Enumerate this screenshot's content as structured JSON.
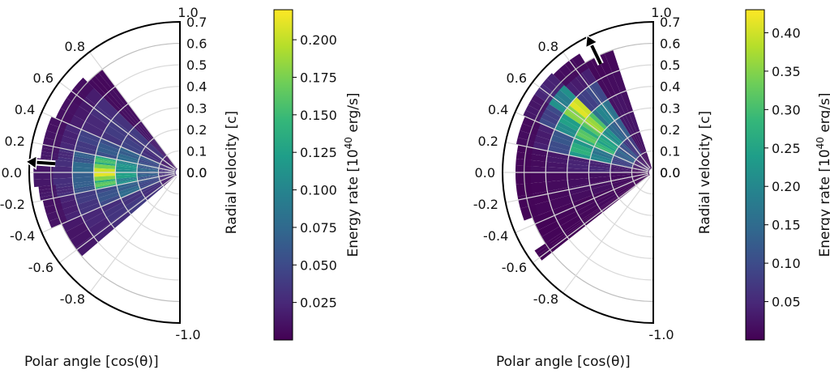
{
  "colormap": [
    "#440154",
    "#482878",
    "#3e4989",
    "#31688e",
    "#26828e",
    "#1f9e89",
    "#35b779",
    "#6ece58",
    "#b5de2b",
    "#fde725"
  ],
  "chart_data": [
    {
      "type": "heatmap",
      "projection": "half-polar",
      "xlabel": "Polar angle [cos(θ)]",
      "ylabel": "Radial velocity [c]",
      "angle_ticks": [
        "1.0",
        "0.8",
        "0.6",
        "0.4",
        "0.2",
        "0.0",
        "-0.2",
        "-0.4",
        "-0.6",
        "-0.8",
        "-1.0"
      ],
      "angle_tick_values": [
        1.0,
        0.8,
        0.6,
        0.4,
        0.2,
        0.0,
        -0.2,
        -0.4,
        -0.6,
        -0.8,
        -1.0
      ],
      "radial_ticks": [
        "0.7",
        "0.6",
        "0.5",
        "0.4",
        "0.3",
        "0.2",
        "0.1",
        "0.0",
        "0.0"
      ],
      "radial_tick_values": [
        0.7,
        0.6,
        0.5,
        0.4,
        0.3,
        0.2,
        0.1,
        0.0,
        0.0
      ],
      "rlim": [
        0,
        0.7
      ],
      "grid": true,
      "colorbar": {
        "label": "Energy rate [10",
        "label_sup": "40",
        "label_tail": " erg/s]",
        "range": [
          0.0,
          0.22
        ],
        "tick_labels": [
          "0.200",
          "0.175",
          "0.150",
          "0.125",
          "0.100",
          "0.075",
          "0.050",
          "0.025"
        ],
        "tick_values": [
          0.2,
          0.175,
          0.15,
          0.125,
          0.1,
          0.075,
          0.05,
          0.025
        ]
      },
      "arrow": {
        "cos_theta": 0.07,
        "r_start": 0.58,
        "r_end": 0.71
      },
      "rows": [
        {
          "mu": [
            0.7,
            0.8
          ],
          "vmax": 0.6,
          "r": [
            0.05,
            0.15,
            0.25,
            0.35,
            0.45,
            0.55
          ],
          "v": [
            0.012,
            0.02,
            0.015,
            0.01,
            0.008,
            0.006
          ]
        },
        {
          "mu": [
            0.4,
            0.7
          ],
          "vmax": 0.63,
          "r": [
            0.05,
            0.15,
            0.25,
            0.35,
            0.45,
            0.55,
            0.61
          ],
          "v": [
            0.02,
            0.035,
            0.045,
            0.04,
            0.03,
            0.018,
            0.01
          ]
        },
        {
          "mu": [
            0.2,
            0.4
          ],
          "vmax": 0.65,
          "r": [
            0.05,
            0.15,
            0.25,
            0.35,
            0.45,
            0.55,
            0.62
          ],
          "v": [
            0.03,
            0.06,
            0.08,
            0.065,
            0.045,
            0.025,
            0.012
          ]
        },
        {
          "mu": [
            0.1,
            0.2
          ],
          "vmax": 0.65,
          "r": [
            0.05,
            0.15,
            0.25,
            0.35,
            0.45,
            0.55,
            0.62
          ],
          "v": [
            0.035,
            0.07,
            0.12,
            0.16,
            0.07,
            0.03,
            0.015
          ]
        },
        {
          "mu": [
            -0.1,
            0.1
          ],
          "vmax": 0.68,
          "r": [
            0.05,
            0.15,
            0.25,
            0.35,
            0.45,
            0.55,
            0.64
          ],
          "v": [
            0.035,
            0.075,
            0.13,
            0.215,
            0.08,
            0.03,
            0.015
          ]
        },
        {
          "mu": [
            -0.2,
            -0.1
          ],
          "vmax": 0.66,
          "r": [
            0.05,
            0.15,
            0.25,
            0.35,
            0.45,
            0.55,
            0.63
          ],
          "v": [
            0.03,
            0.065,
            0.115,
            0.17,
            0.07,
            0.03,
            0.015
          ]
        },
        {
          "mu": [
            -0.4,
            -0.2
          ],
          "vmax": 0.65,
          "r": [
            0.05,
            0.15,
            0.25,
            0.35,
            0.45,
            0.55,
            0.62
          ],
          "v": [
            0.028,
            0.055,
            0.08,
            0.06,
            0.04,
            0.022,
            0.012
          ]
        },
        {
          "mu": [
            -0.65,
            -0.4
          ],
          "vmax": 0.6,
          "r": [
            0.05,
            0.15,
            0.25,
            0.35,
            0.45,
            0.55
          ],
          "v": [
            0.02,
            0.035,
            0.04,
            0.035,
            0.025,
            0.015
          ]
        }
      ]
    },
    {
      "type": "heatmap",
      "projection": "half-polar",
      "xlabel": "Polar angle [cos(θ)]",
      "ylabel": "Radial velocity [c]",
      "angle_ticks": [
        "1.0",
        "0.8",
        "0.6",
        "0.4",
        "0.2",
        "0.0",
        "-0.2",
        "-0.4",
        "-0.6",
        "-0.8",
        "-1.0"
      ],
      "angle_tick_values": [
        1.0,
        0.8,
        0.6,
        0.4,
        0.2,
        0.0,
        -0.2,
        -0.4,
        -0.6,
        -0.8,
        -1.0
      ],
      "radial_ticks": [
        "0.7",
        "0.6",
        "0.5",
        "0.4",
        "0.3",
        "0.2",
        "0.1",
        "0.0",
        "0.0"
      ],
      "radial_tick_values": [
        0.7,
        0.6,
        0.5,
        0.4,
        0.3,
        0.2,
        0.1,
        0.0,
        0.0
      ],
      "rlim": [
        0,
        0.7
      ],
      "grid": true,
      "colorbar": {
        "label": "Energy rate [10",
        "label_sup": "40",
        "label_tail": " erg/s]",
        "range": [
          0.0,
          0.43
        ],
        "tick_labels": [
          "0.40",
          "0.35",
          "0.30",
          "0.25",
          "0.20",
          "0.15",
          "0.10",
          "0.05"
        ],
        "tick_values": [
          0.4,
          0.35,
          0.3,
          0.25,
          0.2,
          0.15,
          0.1,
          0.05
        ]
      },
      "arrow": {
        "cos_theta": 0.9,
        "r_start": 0.56,
        "r_end": 0.7
      },
      "rows": [
        {
          "mu": [
            0.85,
            0.95
          ],
          "vmax": 0.6,
          "r": [
            0.05,
            0.15,
            0.25,
            0.35,
            0.45,
            0.55
          ],
          "v": [
            0.015,
            0.025,
            0.03,
            0.025,
            0.015,
            0.01
          ]
        },
        {
          "mu": [
            0.7,
            0.85
          ],
          "vmax": 0.65,
          "r": [
            0.05,
            0.15,
            0.25,
            0.35,
            0.45,
            0.55,
            0.62
          ],
          "v": [
            0.03,
            0.08,
            0.15,
            0.2,
            0.1,
            0.04,
            0.015
          ]
        },
        {
          "mu": [
            0.55,
            0.7
          ],
          "vmax": 0.66,
          "r": [
            0.05,
            0.15,
            0.25,
            0.35,
            0.45,
            0.55,
            0.63
          ],
          "v": [
            0.04,
            0.12,
            0.25,
            0.38,
            0.42,
            0.22,
            0.05
          ]
        },
        {
          "mu": [
            0.4,
            0.55
          ],
          "vmax": 0.66,
          "r": [
            0.05,
            0.15,
            0.25,
            0.35,
            0.45,
            0.55,
            0.63
          ],
          "v": [
            0.04,
            0.15,
            0.3,
            0.33,
            0.25,
            0.1,
            0.03
          ]
        },
        {
          "mu": [
            0.2,
            0.4
          ],
          "vmax": 0.65,
          "r": [
            0.05,
            0.15,
            0.25,
            0.35,
            0.45,
            0.55,
            0.62
          ],
          "v": [
            0.03,
            0.1,
            0.2,
            0.28,
            0.12,
            0.04,
            0.015
          ]
        },
        {
          "mu": [
            0.0,
            0.2
          ],
          "vmax": 0.64,
          "r": [
            0.05,
            0.15,
            0.25,
            0.35,
            0.45,
            0.55,
            0.62
          ],
          "v": [
            0.015,
            0.035,
            0.05,
            0.045,
            0.03,
            0.015,
            0.008
          ]
        },
        {
          "mu": [
            -0.35,
            0.0
          ],
          "vmax": 0.64,
          "r": [
            0.05,
            0.15,
            0.25,
            0.35,
            0.45,
            0.55,
            0.62
          ],
          "v": [
            0.008,
            0.015,
            0.02,
            0.018,
            0.012,
            0.008,
            0.005
          ]
        },
        {
          "mu": [
            -0.55,
            -0.35
          ],
          "vmax": 0.6,
          "r": [
            0.05,
            0.15,
            0.25,
            0.35,
            0.45,
            0.55
          ],
          "v": [
            0.006,
            0.01,
            0.012,
            0.01,
            0.008,
            0.005
          ]
        },
        {
          "mu": [
            -0.62,
            -0.55
          ],
          "vmax": 0.66,
          "r": [
            0.05,
            0.15,
            0.25,
            0.35,
            0.45,
            0.55,
            0.63
          ],
          "v": [
            0.004,
            0.006,
            0.008,
            0.006,
            0.005,
            0.004,
            0.004
          ]
        }
      ]
    }
  ]
}
